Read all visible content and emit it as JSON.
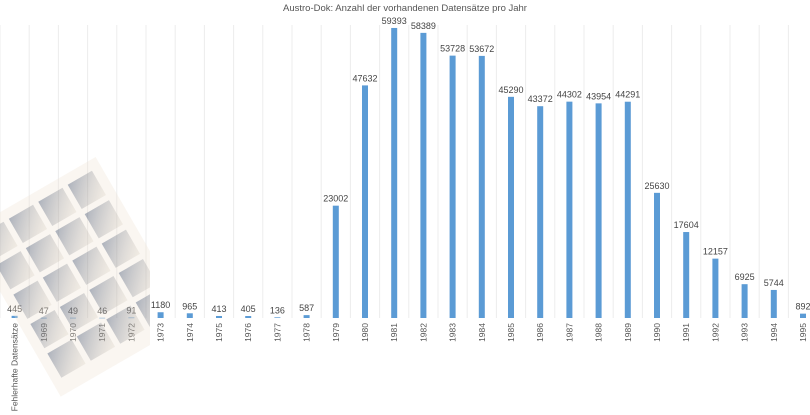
{
  "chart_data": {
    "type": "bar",
    "title": "Austro-Dok: Anzahl der vorhandenen Datensätze pro Jahr",
    "xlabel": "",
    "ylabel": "",
    "ylim": [
      0,
      60000
    ],
    "grid": true,
    "legend": "none",
    "bar_color": "#5b9bd5",
    "categories": [
      "Fehlerhafte Datensätze",
      "1969",
      "1970",
      "1971",
      "1972",
      "1973",
      "1974",
      "1975",
      "1976",
      "1977",
      "1978",
      "1979",
      "1980",
      "1981",
      "1982",
      "1983",
      "1984",
      "1985",
      "1986",
      "1987",
      "1988",
      "1989",
      "1990",
      "1991",
      "1992",
      "1993",
      "1994",
      "1995"
    ],
    "values": [
      445,
      47,
      49,
      46,
      91,
      1180,
      965,
      413,
      405,
      136,
      587,
      23002,
      47632,
      59393,
      58389,
      53728,
      53672,
      45290,
      43372,
      44302,
      43954,
      44291,
      25630,
      17604,
      12157,
      6925,
      5744,
      892
    ]
  }
}
